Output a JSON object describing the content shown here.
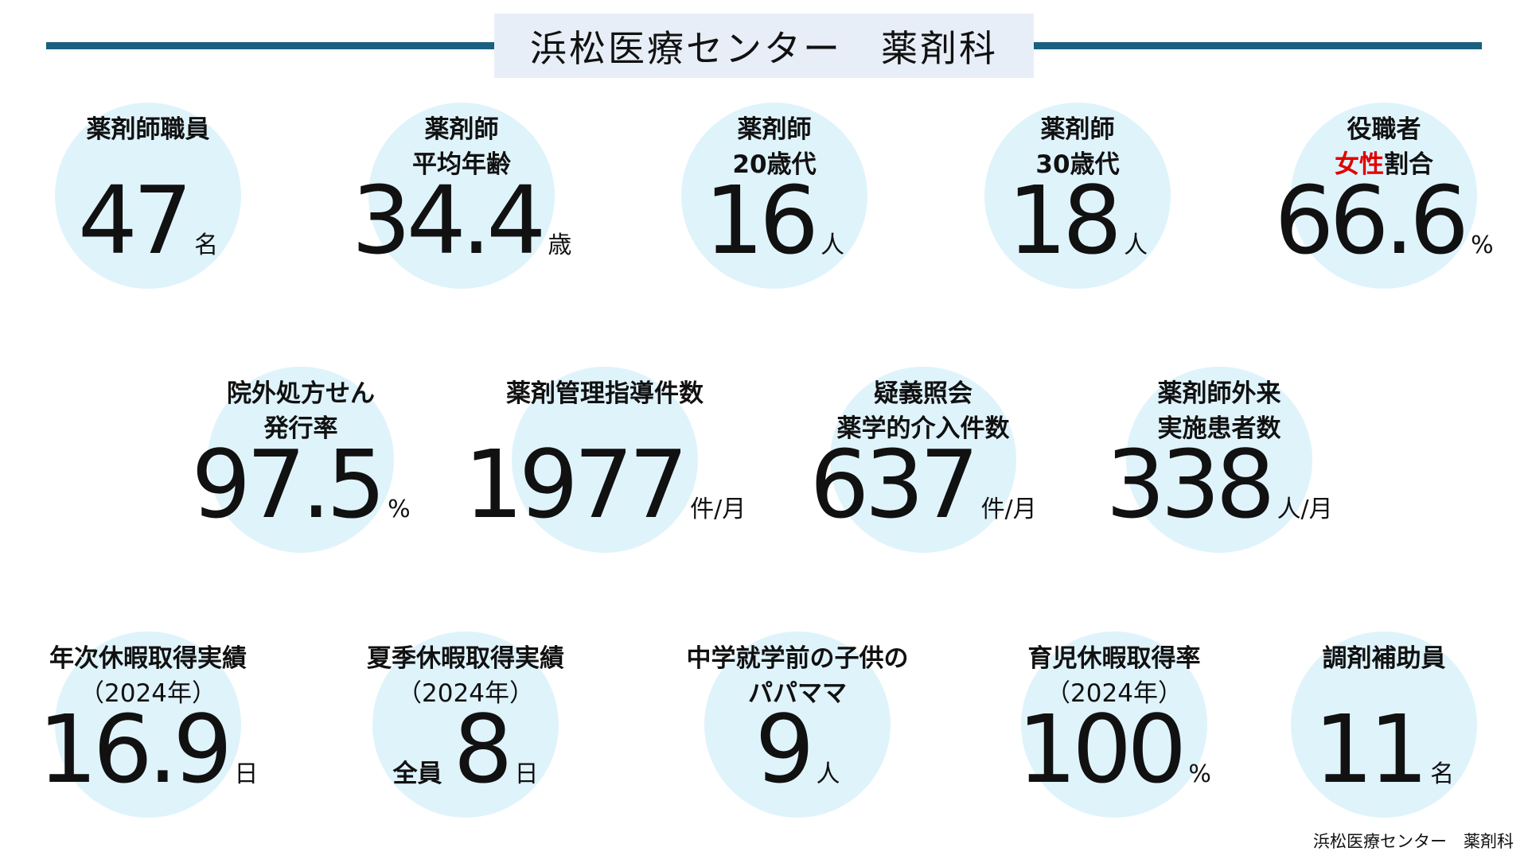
{
  "header": {
    "title": "浜松医療センター　薬剤科"
  },
  "colors": {
    "rule": "#1a6080",
    "title_bg": "#e8eef7",
    "circle": "#dff3fb",
    "highlight": "#e00000"
  },
  "items": [
    {
      "lines": [
        [
          {
            "t": "薬剤師職員"
          }
        ]
      ],
      "value": "47",
      "unit": "名"
    },
    {
      "lines": [
        [
          {
            "t": "薬剤師"
          }
        ],
        [
          {
            "t": "平均年齢"
          }
        ]
      ],
      "value": "34.4",
      "unit": "歳"
    },
    {
      "lines": [
        [
          {
            "t": "薬剤師"
          }
        ],
        [
          {
            "t": "20歳代"
          }
        ]
      ],
      "value": "16",
      "unit": "人"
    },
    {
      "lines": [
        [
          {
            "t": "薬剤師"
          }
        ],
        [
          {
            "t": "30歳代"
          }
        ]
      ],
      "value": "18",
      "unit": "人"
    },
    {
      "lines": [
        [
          {
            "t": "役職者"
          }
        ],
        [
          {
            "t": "女性",
            "red": true
          },
          {
            "t": "割合"
          }
        ]
      ],
      "value": "66.6",
      "unit": "%"
    },
    {
      "lines": [
        [
          {
            "t": "院外処方せん"
          }
        ],
        [
          {
            "t": "発行率"
          }
        ]
      ],
      "value": "97.5",
      "unit": "%"
    },
    {
      "lines": [
        [
          {
            "t": "薬剤管理指導件数"
          }
        ]
      ],
      "value": "1977",
      "unit": "件/月"
    },
    {
      "lines": [
        [
          {
            "t": "疑義照会"
          }
        ],
        [
          {
            "t": "薬学的介入件数"
          }
        ]
      ],
      "value": "637",
      "unit": "件/月"
    },
    {
      "lines": [
        [
          {
            "t": "薬剤師外来"
          }
        ],
        [
          {
            "t": "実施患者数"
          }
        ]
      ],
      "value": "338",
      "unit": "人/月"
    },
    {
      "lines": [
        [
          {
            "t": "年次休暇取得実績"
          }
        ],
        [
          {
            "t": "（2024年）",
            "sub": true
          }
        ]
      ],
      "value": "16.9",
      "unit": "日"
    },
    {
      "lines": [
        [
          {
            "t": "夏季休暇取得実績"
          }
        ],
        [
          {
            "t": "（2024年）",
            "sub": true
          }
        ]
      ],
      "prefix": "全員",
      "value": "8",
      "unit": "日"
    },
    {
      "lines": [
        [
          {
            "t": "中学就学前の子供の"
          }
        ],
        [
          {
            "t": "パパママ"
          }
        ]
      ],
      "value": "9",
      "unit": "人"
    },
    {
      "lines": [
        [
          {
            "t": "育児休暇取得率"
          }
        ],
        [
          {
            "t": "（2024年）",
            "sub": true
          }
        ]
      ],
      "value": "100",
      "unit": "%"
    },
    {
      "lines": [
        [
          {
            "t": "調剤補助員"
          }
        ]
      ],
      "value": "11",
      "unit": "名"
    }
  ],
  "footer": {
    "text": "浜松医療センター　薬剤科"
  }
}
